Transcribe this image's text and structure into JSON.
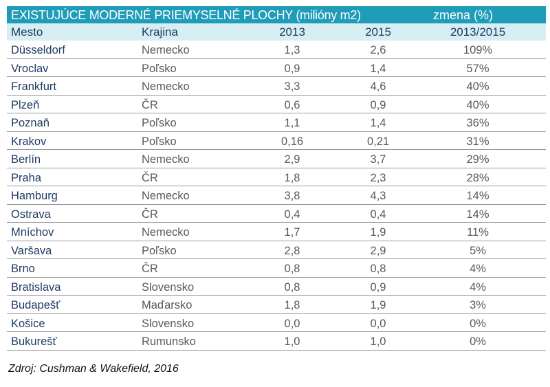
{
  "title": "EXISTUJÚCE MODERNÉ PRIEMYSELNÉ PLOCHY (milióny m2)",
  "title_change": "zmena (%)",
  "headers": [
    "Mesto",
    "Krajina",
    "2013",
    "2015",
    "2013/2015"
  ],
  "rows": [
    [
      "Düsseldorf",
      "Nemecko",
      "1,3",
      "2,6",
      "109%"
    ],
    [
      "Vroclav",
      "Poľsko",
      "0,9",
      "1,4",
      "57%"
    ],
    [
      "Frankfurt",
      "Nemecko",
      "3,3",
      "4,6",
      "40%"
    ],
    [
      "Plzeň",
      "ČR",
      "0,6",
      "0,9",
      "40%"
    ],
    [
      "Poznaň",
      "Poľsko",
      "1,1",
      "1,4",
      "36%"
    ],
    [
      "Krakov",
      "Poľsko",
      "0,16",
      "0,21",
      "31%"
    ],
    [
      "Berlín",
      "Nemecko",
      "2,9",
      "3,7",
      "29%"
    ],
    [
      "Praha",
      "ČR",
      "1,8",
      "2,3",
      "28%"
    ],
    [
      "Hamburg",
      "Nemecko",
      "3,8",
      "4,3",
      "14%"
    ],
    [
      "Ostrava",
      "ČR",
      "0,4",
      "0,4",
      "14%"
    ],
    [
      "Mníchov",
      "Nemecko",
      "1,7",
      "1,9",
      "11%"
    ],
    [
      "Varšava",
      "Poľsko",
      "2,8",
      "2,9",
      "5%"
    ],
    [
      "Brno",
      "ČR",
      "0,8",
      "0,8",
      "4%"
    ],
    [
      "Bratislava",
      "Slovensko",
      "0,8",
      "0,9",
      "4%"
    ],
    [
      "Budapešť",
      "Maďarsko",
      "1,8",
      "1,9",
      "3%"
    ],
    [
      "Košice",
      "Slovensko",
      "0,0",
      "0,0",
      "0%"
    ],
    [
      "Bukurešť",
      "Rumunsko",
      "1,0",
      "1,0",
      "0%"
    ]
  ],
  "source": "Zdroj: Cushman & Wakefield, 2016",
  "colors": {
    "title_bg": "#1f9cb8",
    "header_bg": "#d7eef3",
    "city": "#1f3c64",
    "value": "#595959"
  }
}
